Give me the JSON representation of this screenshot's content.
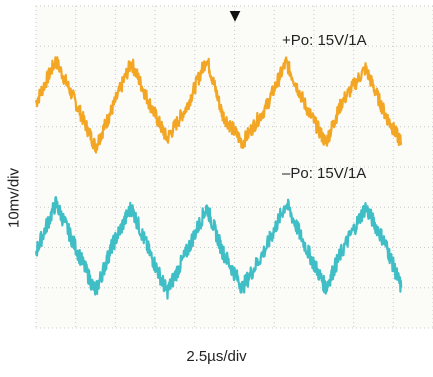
{
  "chart_data": {
    "type": "line",
    "xlabel": "2.5µs/div",
    "ylabel": "10mv/div",
    "grid": true,
    "divisions": {
      "x": 10,
      "y": 8
    },
    "series": [
      {
        "name": "+Po: 15V/1A",
        "color": "#f2a623",
        "x": [
          0.0,
          0.5,
          1.0,
          1.5,
          1.9,
          2.4,
          2.85,
          3.3,
          3.8,
          4.3,
          4.7,
          5.2,
          5.8,
          6.3,
          6.8,
          7.3,
          7.7,
          8.3,
          8.8,
          9.2
        ],
        "y": [
          1.6,
          2.65,
          1.6,
          0.5,
          1.4,
          2.6,
          1.6,
          0.7,
          1.5,
          2.7,
          1.3,
          0.6,
          1.5,
          2.6,
          1.5,
          0.6,
          1.6,
          2.45,
          1.3,
          0.6
        ],
        "noise": 0.18
      },
      {
        "name": "–Po: 15V/1A",
        "color": "#3fbec6",
        "x": [
          0.0,
          0.5,
          1.0,
          1.5,
          1.9,
          2.4,
          2.85,
          3.3,
          3.8,
          4.3,
          4.7,
          5.2,
          5.8,
          6.3,
          6.8,
          7.3,
          7.7,
          8.3,
          8.8,
          9.2
        ],
        "y": [
          -2.1,
          -0.9,
          -2.0,
          -3.1,
          -2.0,
          -1.0,
          -2.1,
          -3.1,
          -2.1,
          -1.0,
          -2.1,
          -3.0,
          -2.0,
          -0.9,
          -2.0,
          -3.0,
          -2.1,
          -1.0,
          -1.9,
          -3.0
        ],
        "noise": 0.2
      }
    ],
    "trigger_marker": "▼"
  }
}
